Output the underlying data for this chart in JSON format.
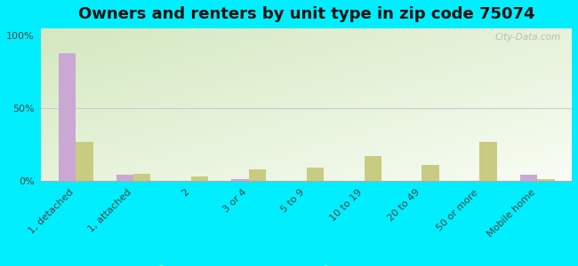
{
  "title": "Owners and renters by unit type in zip code 75074",
  "categories": [
    "1, detached",
    "1, attached",
    "2",
    "3 or 4",
    "5 to 9",
    "10 to 19",
    "20 to 49",
    "50 or more",
    "Mobile home"
  ],
  "owner_values": [
    88,
    4,
    0,
    1,
    0,
    0,
    0,
    0,
    4
  ],
  "renter_values": [
    27,
    5,
    3,
    8,
    9,
    17,
    11,
    27,
    1
  ],
  "owner_color": "#c9a8d4",
  "renter_color": "#c8cc82",
  "background_color": "#00eeff",
  "plot_bg_colors": [
    "#d4e8c0",
    "#eef8e8",
    "#f8fdf4"
  ],
  "yticks": [
    0,
    50,
    100
  ],
  "ylim": [
    0,
    105
  ],
  "bar_width": 0.3,
  "title_fontsize": 13,
  "legend_fontsize": 9,
  "tick_label_fontsize": 8,
  "watermark": "City-Data.com",
  "grid_color": "#cccccc"
}
